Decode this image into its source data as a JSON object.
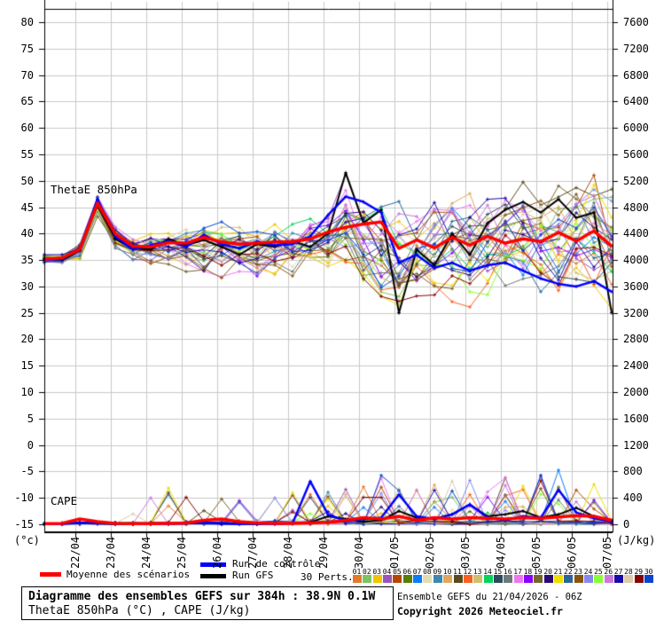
{
  "chart": {
    "region_label_thetae": "ThetaE 850hPa",
    "region_label_cape": "CAPE",
    "left_axis_unit": "(°c)",
    "right_axis_unit": "(J/kg)",
    "left_axis_ticks": [
      "80",
      "75",
      "70",
      "65",
      "60",
      "55",
      "50",
      "45",
      "40",
      "35",
      "30",
      "25",
      "20",
      "15",
      "10",
      "5",
      "0",
      "-5",
      "-10",
      "-15"
    ],
    "right_axis_ticks": [
      "7600",
      "7200",
      "6800",
      "6400",
      "6000",
      "5600",
      "5200",
      "4800",
      "4400",
      "4000",
      "3600",
      "3200",
      "2800",
      "2400",
      "2000",
      "1600",
      "1200",
      "800",
      "400",
      "0"
    ],
    "x_axis_dates": [
      "22/04",
      "23/04",
      "24/04",
      "25/04",
      "26/04",
      "27/04",
      "28/04",
      "29/04",
      "30/04",
      "01/05",
      "02/05",
      "03/05",
      "04/05",
      "05/05",
      "06/05",
      "07/05"
    ]
  },
  "legend": {
    "mean_label": "Moyenne des scénarios",
    "control_label": "Run de contrôle",
    "gfs_label": "Run GFS",
    "perts_label": "30 Perts.",
    "mean_color": "#ff0000",
    "control_color": "#0000ff",
    "gfs_color": "#000000",
    "pert_numbers": [
      "01",
      "02",
      "03",
      "04",
      "05",
      "06",
      "07",
      "08",
      "09",
      "10",
      "11",
      "12",
      "13",
      "14",
      "15",
      "16",
      "17",
      "18",
      "19",
      "20",
      "21",
      "22",
      "23",
      "24",
      "25",
      "26",
      "27",
      "28",
      "29",
      "30"
    ],
    "pert_colors": [
      "#e5792a",
      "#7cc462",
      "#f0c400",
      "#9955bb",
      "#b34700",
      "#567f00",
      "#0a7cf8",
      "#e3dcb2",
      "#3e87b0",
      "#e2a75a",
      "#5a4a1e",
      "#f8611e",
      "#cfbf70",
      "#06d45e",
      "#2e4a5e",
      "#6e7a7a",
      "#ee77ee",
      "#8800ff",
      "#77662a",
      "#2a0a77",
      "#eedd00",
      "#2a6699",
      "#885511",
      "#8888ee",
      "#88ff33",
      "#cc77dd",
      "#1a0aaa",
      "#ddccaa",
      "#880000",
      "#0a44cc"
    ]
  },
  "footer": {
    "title": "Diagramme des ensembles GEFS sur 384h : 38.9N 0.1W",
    "subtitle": "ThetaE 850hPa (°C) , CAPE (J/kg)",
    "run_info": "Ensemble GEFS du 21/04/2026 - 06Z",
    "copyright": "Copyright 2026 Meteociel.fr"
  },
  "chart_data": {
    "type": "line",
    "title": "Diagramme des ensembles GEFS sur 384h : 38.9N 0.1W",
    "subtitle": "ThetaE 850hPa (°C) , CAPE (J/kg)",
    "run": "Ensemble GEFS du 21/04/2026 - 06Z",
    "x_tick_labels": [
      "22/04",
      "23/04",
      "24/04",
      "25/04",
      "26/04",
      "27/04",
      "28/04",
      "29/04",
      "30/04",
      "01/05",
      "02/05",
      "03/05",
      "04/05",
      "05/05",
      "06/05",
      "07/05"
    ],
    "x_step_hours": 12,
    "ylabel_left": "ThetaE 850hPa (°c)",
    "ylabel_right": "CAPE (J/kg)",
    "ylim_left": [
      -15,
      82.5
    ],
    "ylim_right": [
      0,
      7800
    ],
    "grid": true,
    "legend_position": "bottom",
    "series": {
      "thetae_mean": [
        35.2,
        35.4,
        37.0,
        45.8,
        40.0,
        37.6,
        37.5,
        38.3,
        38.2,
        39.3,
        38.4,
        38.0,
        38.2,
        38.4,
        38.5,
        39.0,
        40.3,
        41.2,
        41.8,
        42.2,
        37.2,
        38.8,
        37.3,
        39.3,
        37.8,
        39.5,
        38.2,
        39.0,
        38.5,
        40.2,
        38.6,
        40.5,
        37.6
      ],
      "thetae_control": [
        35.0,
        35.2,
        37.2,
        46.5,
        39.5,
        37.0,
        37.8,
        38.6,
        37.5,
        39.8,
        38.0,
        37.2,
        38.5,
        37.8,
        38.0,
        39.5,
        43.5,
        47.0,
        46.0,
        44.0,
        34.5,
        36.0,
        33.5,
        34.5,
        33.0,
        34.0,
        34.5,
        33.0,
        31.5,
        30.5,
        30.0,
        31.0,
        29.0
      ],
      "thetae_gfs": [
        35.3,
        35.0,
        36.8,
        45.5,
        39.0,
        37.2,
        37.0,
        39.0,
        37.8,
        38.8,
        37.5,
        36.0,
        38.0,
        37.5,
        38.6,
        37.5,
        40.0,
        51.5,
        42.0,
        44.5,
        25.0,
        37.0,
        34.0,
        40.0,
        36.0,
        42.0,
        44.5,
        46.0,
        44.0,
        46.5,
        43.0,
        44.0,
        25.0
      ],
      "thetae_member_envelope": {
        "min": [
          34.0,
          34.3,
          35.0,
          43.0,
          37.0,
          35.0,
          34.5,
          34.0,
          33.0,
          31.0,
          31.5,
          32.0,
          31.0,
          32.0,
          31.5,
          33.0,
          32.0,
          30.0,
          28.0,
          26.0,
          24.0,
          26.5,
          26.0,
          27.0,
          26.5,
          27.0,
          27.0,
          27.5,
          27.0,
          26.5,
          26.0,
          25.5,
          24.0
        ],
        "max": [
          36.5,
          36.5,
          38.5,
          48.0,
          42.0,
          40.0,
          40.5,
          41.0,
          41.5,
          42.5,
          43.0,
          42.0,
          41.5,
          42.0,
          42.5,
          43.5,
          44.5,
          52.0,
          48.5,
          47.0,
          46.0,
          45.0,
          46.0,
          46.5,
          47.0,
          48.0,
          48.5,
          49.0,
          49.5,
          50.0,
          51.0,
          52.0,
          49.0
        ]
      },
      "cape_mean": [
        10,
        15,
        80,
        40,
        15,
        10,
        10,
        15,
        20,
        60,
        80,
        40,
        20,
        15,
        15,
        20,
        30,
        60,
        100,
        80,
        120,
        60,
        100,
        80,
        100,
        90,
        80,
        100,
        90,
        110,
        130,
        120,
        60
      ],
      "cape_control": [
        5,
        5,
        25,
        15,
        10,
        5,
        5,
        10,
        15,
        25,
        10,
        5,
        10,
        5,
        15,
        650,
        150,
        50,
        80,
        100,
        450,
        120,
        80,
        150,
        300,
        100,
        60,
        120,
        100,
        520,
        180,
        90,
        40
      ],
      "cape_gfs": [
        5,
        5,
        30,
        15,
        5,
        5,
        5,
        10,
        15,
        20,
        10,
        10,
        5,
        10,
        15,
        30,
        120,
        80,
        40,
        60,
        200,
        100,
        80,
        150,
        300,
        120,
        150,
        200,
        100,
        150,
        250,
        120,
        60
      ],
      "cape_featured_spikes": [
        {
          "member": 7,
          "k": 29,
          "value": 820
        },
        {
          "member": 21,
          "k": 7,
          "value": 550
        },
        {
          "member": 11,
          "k": 7,
          "value": 480
        },
        {
          "member": 4,
          "k": 17,
          "value": 530
        },
        {
          "member": 26,
          "k": 21,
          "value": 520
        },
        {
          "member": 17,
          "k": 26,
          "value": 700
        }
      ],
      "members": {
        "count": 30,
        "seed": 7
      }
    }
  }
}
